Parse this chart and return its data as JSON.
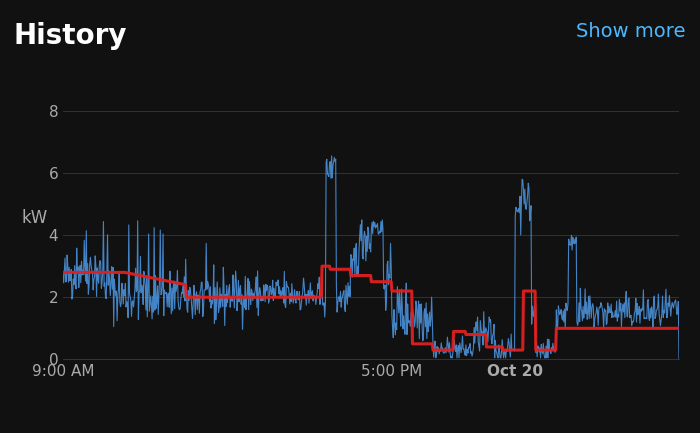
{
  "title": "History",
  "show_more_text": "Show more",
  "ylabel": "kW",
  "x_tick_labels": [
    "9:00 AM",
    "5:00 PM",
    "Oct 20"
  ],
  "x_tick_positions": [
    0,
    8,
    11
  ],
  "xlim": [
    0,
    15
  ],
  "ylim": [
    0,
    8.5
  ],
  "yticks": [
    0,
    2,
    4,
    6,
    8
  ],
  "bg_color": "#111111",
  "plot_bg_color": "#111111",
  "blue_color": "#4a90d9",
  "red_color": "#e02020",
  "grid_color": "#333333",
  "title_color": "#ffffff",
  "tick_color": "#aaaaaa",
  "show_more_color": "#4db8ff",
  "ylabel_color": "#aaaaaa"
}
